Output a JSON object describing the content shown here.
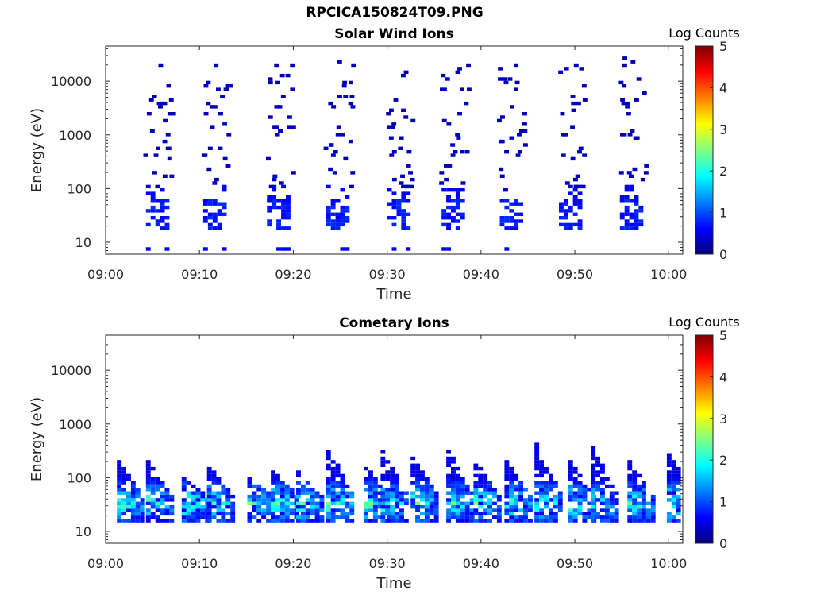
{
  "figure": {
    "title": "RPCICA150824T09.PNG"
  },
  "colormap": {
    "name": "jet",
    "stops": [
      "#00007f",
      "#0000ff",
      "#0080ff",
      "#00ffff",
      "#80ff80",
      "#ffff00",
      "#ff8000",
      "#ff0000",
      "#7f0000"
    ]
  },
  "chart_data": [
    {
      "type": "heatmap",
      "title": "Solar Wind Ions",
      "xlabel": "Time",
      "ylabel": "Energy (eV)",
      "xticks": [
        "09:00",
        "09:10",
        "09:20",
        "09:30",
        "09:40",
        "09:50",
        "10:00"
      ],
      "xlim_minutes": [
        0,
        61.5
      ],
      "ylim": [
        6,
        45000
      ],
      "yscale": "log",
      "yticks": [
        10,
        100,
        1000,
        10000
      ],
      "colorbar": {
        "label": "Log Counts",
        "ticks": [
          0,
          1,
          2,
          3,
          4,
          5
        ],
        "range": [
          0,
          5
        ]
      },
      "pattern": {
        "description": "periodic bursts of ion counts",
        "burst_centers_minutes": [
          5.5,
          11.6,
          18.4,
          24.7,
          31.2,
          37.0,
          43.2,
          49.5,
          56.0
        ],
        "core_energy_range_eV": [
          18,
          60
        ],
        "core_log_counts": 0.6,
        "sparse_energy_range_eV": [
          100,
          25000
        ],
        "sparse_log_counts": 0.3
      }
    },
    {
      "type": "heatmap",
      "title": "Cometary Ions",
      "xlabel": "Time",
      "ylabel": "Energy (eV)",
      "xticks": [
        "09:00",
        "09:10",
        "09:20",
        "09:30",
        "09:40",
        "09:50",
        "10:00"
      ],
      "xlim_minutes": [
        0,
        61.5
      ],
      "ylim": [
        6,
        45000
      ],
      "yscale": "log",
      "yticks": [
        10,
        100,
        1000,
        10000
      ],
      "colorbar": {
        "label": "Log Counts",
        "ticks": [
          0,
          1,
          2,
          3,
          4,
          5
        ],
        "range": [
          0,
          5
        ]
      },
      "pattern": {
        "description": "repeating dispersed bands",
        "band_start_minutes": [
          1.2,
          4.3,
          8.1,
          10.8,
          15.1,
          17.6,
          20.3,
          23.5,
          27.5,
          29.3,
          32.5,
          36.3,
          39.2,
          42.5,
          45.7,
          49.3,
          51.7,
          55.6,
          59.8
        ],
        "band_peak_energy_eV": [
          200,
          200,
          90,
          150,
          90,
          130,
          120,
          350,
          150,
          300,
          250,
          330,
          180,
          200,
          400,
          200,
          350,
          200,
          280
        ],
        "band_floor_energy_eV": 15,
        "peak_log_counts": 2.2
      }
    }
  ]
}
